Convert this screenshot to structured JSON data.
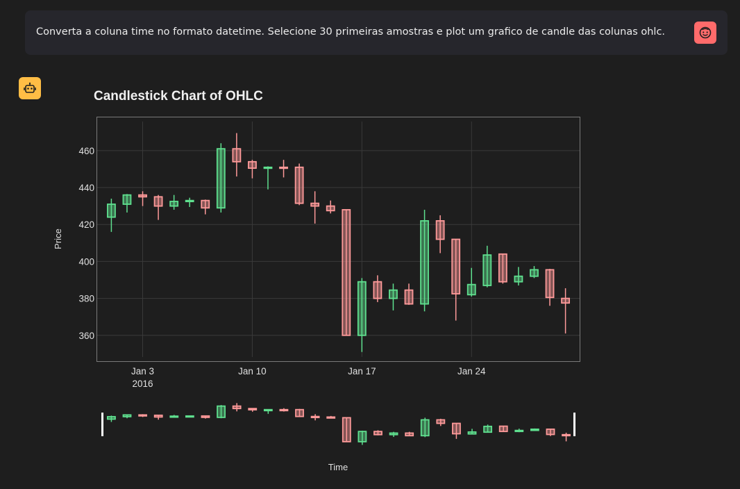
{
  "user_message": {
    "text": "Converta a coluna time no formato datetime. Selecione 30 primeiras amostras e plot um grafico de candle das colunas ohlc.",
    "avatar_icon": "face-icon",
    "avatar_color": "#ff6b6b"
  },
  "assistant": {
    "avatar_icon": "robot-icon",
    "avatar_color": "#ffbd45"
  },
  "chart_data": {
    "type": "candlestick",
    "title": "Candlestick Chart of OHLC",
    "xlabel": "Time",
    "ylabel": "Price",
    "ylim": [
      346,
      478
    ],
    "y_ticks": [
      360,
      380,
      400,
      420,
      440,
      460
    ],
    "x_range": [
      "2016-01-01",
      "2016-01-30"
    ],
    "x_ticks": [
      {
        "date": "2016-01-03",
        "label": "Jan 3",
        "sublabel": "2016"
      },
      {
        "date": "2016-01-10",
        "label": "Jan 10"
      },
      {
        "date": "2016-01-17",
        "label": "Jan 17"
      },
      {
        "date": "2016-01-24",
        "label": "Jan 24"
      }
    ],
    "increasing_color": "#5fe08f",
    "decreasing_color": "#ff9a9a",
    "grid": true,
    "range_slider": true,
    "candles": [
      {
        "date": "2016-01-01",
        "open": 424.0,
        "high": 434.0,
        "low": 416.0,
        "close": 431.0
      },
      {
        "date": "2016-01-02",
        "open": 431.0,
        "high": 436.5,
        "low": 426.5,
        "close": 436.0
      },
      {
        "date": "2016-01-03",
        "open": 436.0,
        "high": 438.0,
        "low": 430.0,
        "close": 435.0
      },
      {
        "date": "2016-01-04",
        "open": 435.0,
        "high": 436.0,
        "low": 422.5,
        "close": 430.0
      },
      {
        "date": "2016-01-05",
        "open": 430.0,
        "high": 436.0,
        "low": 428.0,
        "close": 432.5
      },
      {
        "date": "2016-01-06",
        "open": 432.5,
        "high": 434.5,
        "low": 429.5,
        "close": 433.0
      },
      {
        "date": "2016-01-07",
        "open": 433.0,
        "high": 433.5,
        "low": 425.5,
        "close": 429.0
      },
      {
        "date": "2016-01-08",
        "open": 429.0,
        "high": 464.0,
        "low": 426.5,
        "close": 461.0
      },
      {
        "date": "2016-01-09",
        "open": 461.0,
        "high": 469.5,
        "low": 446.0,
        "close": 454.0
      },
      {
        "date": "2016-01-10",
        "open": 454.0,
        "high": 455.0,
        "low": 445.0,
        "close": 450.5
      },
      {
        "date": "2016-01-11",
        "open": 450.5,
        "high": 451.5,
        "low": 439.0,
        "close": 451.0
      },
      {
        "date": "2016-01-12",
        "open": 451.0,
        "high": 455.0,
        "low": 445.5,
        "close": 450.5
      },
      {
        "date": "2016-01-13",
        "open": 451.0,
        "high": 453.0,
        "low": 430.5,
        "close": 431.5
      },
      {
        "date": "2016-01-14",
        "open": 431.5,
        "high": 438.0,
        "low": 420.5,
        "close": 430.0
      },
      {
        "date": "2016-01-15",
        "open": 430.0,
        "high": 433.0,
        "low": 426.0,
        "close": 427.5
      },
      {
        "date": "2016-01-16",
        "open": 428.0,
        "high": 428.0,
        "low": 360.0,
        "close": 360.0
      },
      {
        "date": "2016-01-17",
        "open": 360.0,
        "high": 391.0,
        "low": 351.0,
        "close": 389.0
      },
      {
        "date": "2016-01-18",
        "open": 389.0,
        "high": 392.5,
        "low": 378.0,
        "close": 380.0
      },
      {
        "date": "2016-01-19",
        "open": 380.0,
        "high": 388.0,
        "low": 373.5,
        "close": 384.5
      },
      {
        "date": "2016-01-20",
        "open": 384.5,
        "high": 388.0,
        "low": 376.5,
        "close": 377.0
      },
      {
        "date": "2016-01-21",
        "open": 377.0,
        "high": 428.0,
        "low": 373.0,
        "close": 422.0
      },
      {
        "date": "2016-01-22",
        "open": 422.0,
        "high": 425.0,
        "low": 404.5,
        "close": 412.0
      },
      {
        "date": "2016-01-23",
        "open": 412.0,
        "high": 412.0,
        "low": 368.0,
        "close": 382.5
      },
      {
        "date": "2016-01-24",
        "open": 382.0,
        "high": 396.5,
        "low": 381.0,
        "close": 387.5
      },
      {
        "date": "2016-01-25",
        "open": 387.0,
        "high": 408.5,
        "low": 386.0,
        "close": 403.5
      },
      {
        "date": "2016-01-26",
        "open": 404.0,
        "high": 404.0,
        "low": 388.0,
        "close": 389.0
      },
      {
        "date": "2016-01-27",
        "open": 389.0,
        "high": 397.0,
        "low": 387.0,
        "close": 392.0
      },
      {
        "date": "2016-01-28",
        "open": 392.0,
        "high": 397.5,
        "low": 391.0,
        "close": 395.5
      },
      {
        "date": "2016-01-29",
        "open": 395.5,
        "high": 396.0,
        "low": 376.0,
        "close": 380.5
      },
      {
        "date": "2016-01-30",
        "open": 380.0,
        "high": 385.5,
        "low": 361.0,
        "close": 377.5
      }
    ]
  }
}
